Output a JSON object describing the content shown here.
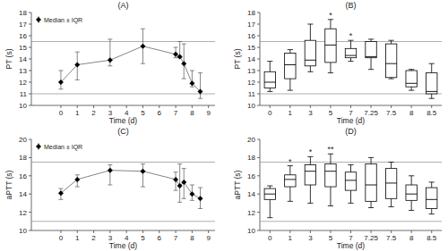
{
  "chart_data": [
    {
      "type": "line",
      "title": "(A)",
      "x_label": "Time (d)",
      "y_label": "PT (s)",
      "x": [
        0,
        1,
        3,
        5,
        7,
        7.25,
        7.5,
        8,
        8.5
      ],
      "xlim": [
        -1.8,
        9.4
      ],
      "xticks": [
        0,
        1,
        2,
        3,
        4,
        5,
        6,
        7,
        8,
        9
      ],
      "ylim": [
        10,
        18
      ],
      "yticks": [
        10,
        11,
        12,
        13,
        14,
        15,
        16,
        17,
        18
      ],
      "grid": false,
      "legend": "upper left",
      "reference_lines": [
        11,
        15.5
      ],
      "series": [
        {
          "name": "Median ± IQR",
          "color": "#000000",
          "marker": "diamond",
          "values": [
            12.0,
            13.5,
            13.9,
            15.1,
            14.4,
            14.2,
            13.6,
            11.9,
            11.2
          ],
          "q1": [
            11.4,
            12.2,
            13.4,
            13.6,
            14.1,
            14.1,
            12.3,
            11.6,
            10.6
          ],
          "q3": [
            13.0,
            14.6,
            15.7,
            16.6,
            15.0,
            15.5,
            15.3,
            13.0,
            12.8
          ]
        }
      ]
    },
    {
      "type": "box",
      "title": "(B)",
      "x_label": "Time (d)",
      "y_label": "PT (s)",
      "categories": [
        "0",
        "1",
        "3",
        "5",
        "7",
        "7.25",
        "7.5",
        "8",
        "8.5"
      ],
      "ylim": [
        10,
        18
      ],
      "yticks": [
        10,
        11,
        12,
        13,
        14,
        15,
        16,
        17,
        18
      ],
      "grid": false,
      "reference_lines": [
        11,
        15.5
      ],
      "series": [
        {
          "color": "#000000",
          "min": [
            11.2,
            11.3,
            12.9,
            12.8,
            13.8,
            13.1,
            12.3,
            11.3,
            10.6
          ],
          "q1": [
            11.5,
            12.3,
            13.4,
            13.7,
            14.1,
            14.1,
            12.4,
            11.6,
            11.0
          ],
          "median": [
            12.0,
            13.5,
            13.9,
            15.2,
            14.3,
            14.2,
            13.6,
            11.9,
            11.2
          ],
          "q3": [
            12.9,
            14.5,
            15.6,
            16.6,
            14.9,
            15.5,
            15.3,
            13.0,
            12.8
          ],
          "max": [
            13.8,
            14.8,
            17.0,
            17.4,
            15.6,
            15.7,
            15.6,
            13.1,
            13.6
          ],
          "annotations": [
            null,
            null,
            null,
            "*",
            "*",
            null,
            null,
            null,
            null
          ]
        }
      ]
    },
    {
      "type": "line",
      "title": "(C)",
      "x_label": "Time (d)",
      "y_label": "aPTT (s)",
      "x": [
        0,
        1,
        3,
        5,
        7,
        7.25,
        7.5,
        8,
        8.5
      ],
      "xlim": [
        -1.8,
        9.4
      ],
      "xticks": [
        0,
        1,
        2,
        3,
        4,
        5,
        6,
        7,
        8,
        9
      ],
      "ylim": [
        10,
        20
      ],
      "yticks": [
        10,
        12,
        14,
        16,
        18,
        20
      ],
      "grid": false,
      "legend": "upper left",
      "reference_lines": [
        11,
        17.5
      ],
      "series": [
        {
          "name": "Median ± IQR",
          "color": "#000000",
          "marker": "diamond",
          "values": [
            14.1,
            15.6,
            16.6,
            16.5,
            15.6,
            14.9,
            15.3,
            14.0,
            13.5
          ],
          "q1": [
            13.4,
            14.8,
            15.0,
            14.8,
            14.4,
            13.1,
            13.5,
            13.3,
            12.4
          ],
          "q3": [
            14.6,
            16.1,
            17.2,
            17.3,
            16.4,
            17.3,
            16.8,
            15.0,
            14.7
          ]
        }
      ]
    },
    {
      "type": "box",
      "title": "(D)",
      "x_label": "Time (d)",
      "y_label": "aPTT (s)",
      "categories": [
        "0",
        "1",
        "3",
        "5",
        "7",
        "7.25",
        "7.5",
        "8",
        "8.5"
      ],
      "ylim": [
        10,
        20
      ],
      "yticks": [
        10,
        12,
        14,
        16,
        18,
        20
      ],
      "grid": false,
      "reference_lines": [
        11,
        17.5
      ],
      "series": [
        {
          "color": "#000000",
          "min": [
            11.4,
            13.2,
            13.0,
            12.7,
            13.0,
            12.5,
            12.6,
            12.2,
            11.8
          ],
          "q1": [
            13.4,
            14.8,
            15.0,
            14.8,
            14.4,
            13.2,
            13.5,
            13.3,
            12.4
          ],
          "median": [
            14.0,
            15.6,
            16.5,
            16.5,
            15.5,
            15.0,
            15.2,
            14.0,
            13.4
          ],
          "q3": [
            14.6,
            16.1,
            17.2,
            17.3,
            16.4,
            17.3,
            16.8,
            15.0,
            14.7
          ],
          "max": [
            14.9,
            17.1,
            18.1,
            18.4,
            17.2,
            18.0,
            17.5,
            16.0,
            15.3
          ],
          "annotations": [
            null,
            "*",
            "*",
            "**",
            null,
            null,
            null,
            null,
            null
          ]
        }
      ]
    }
  ]
}
